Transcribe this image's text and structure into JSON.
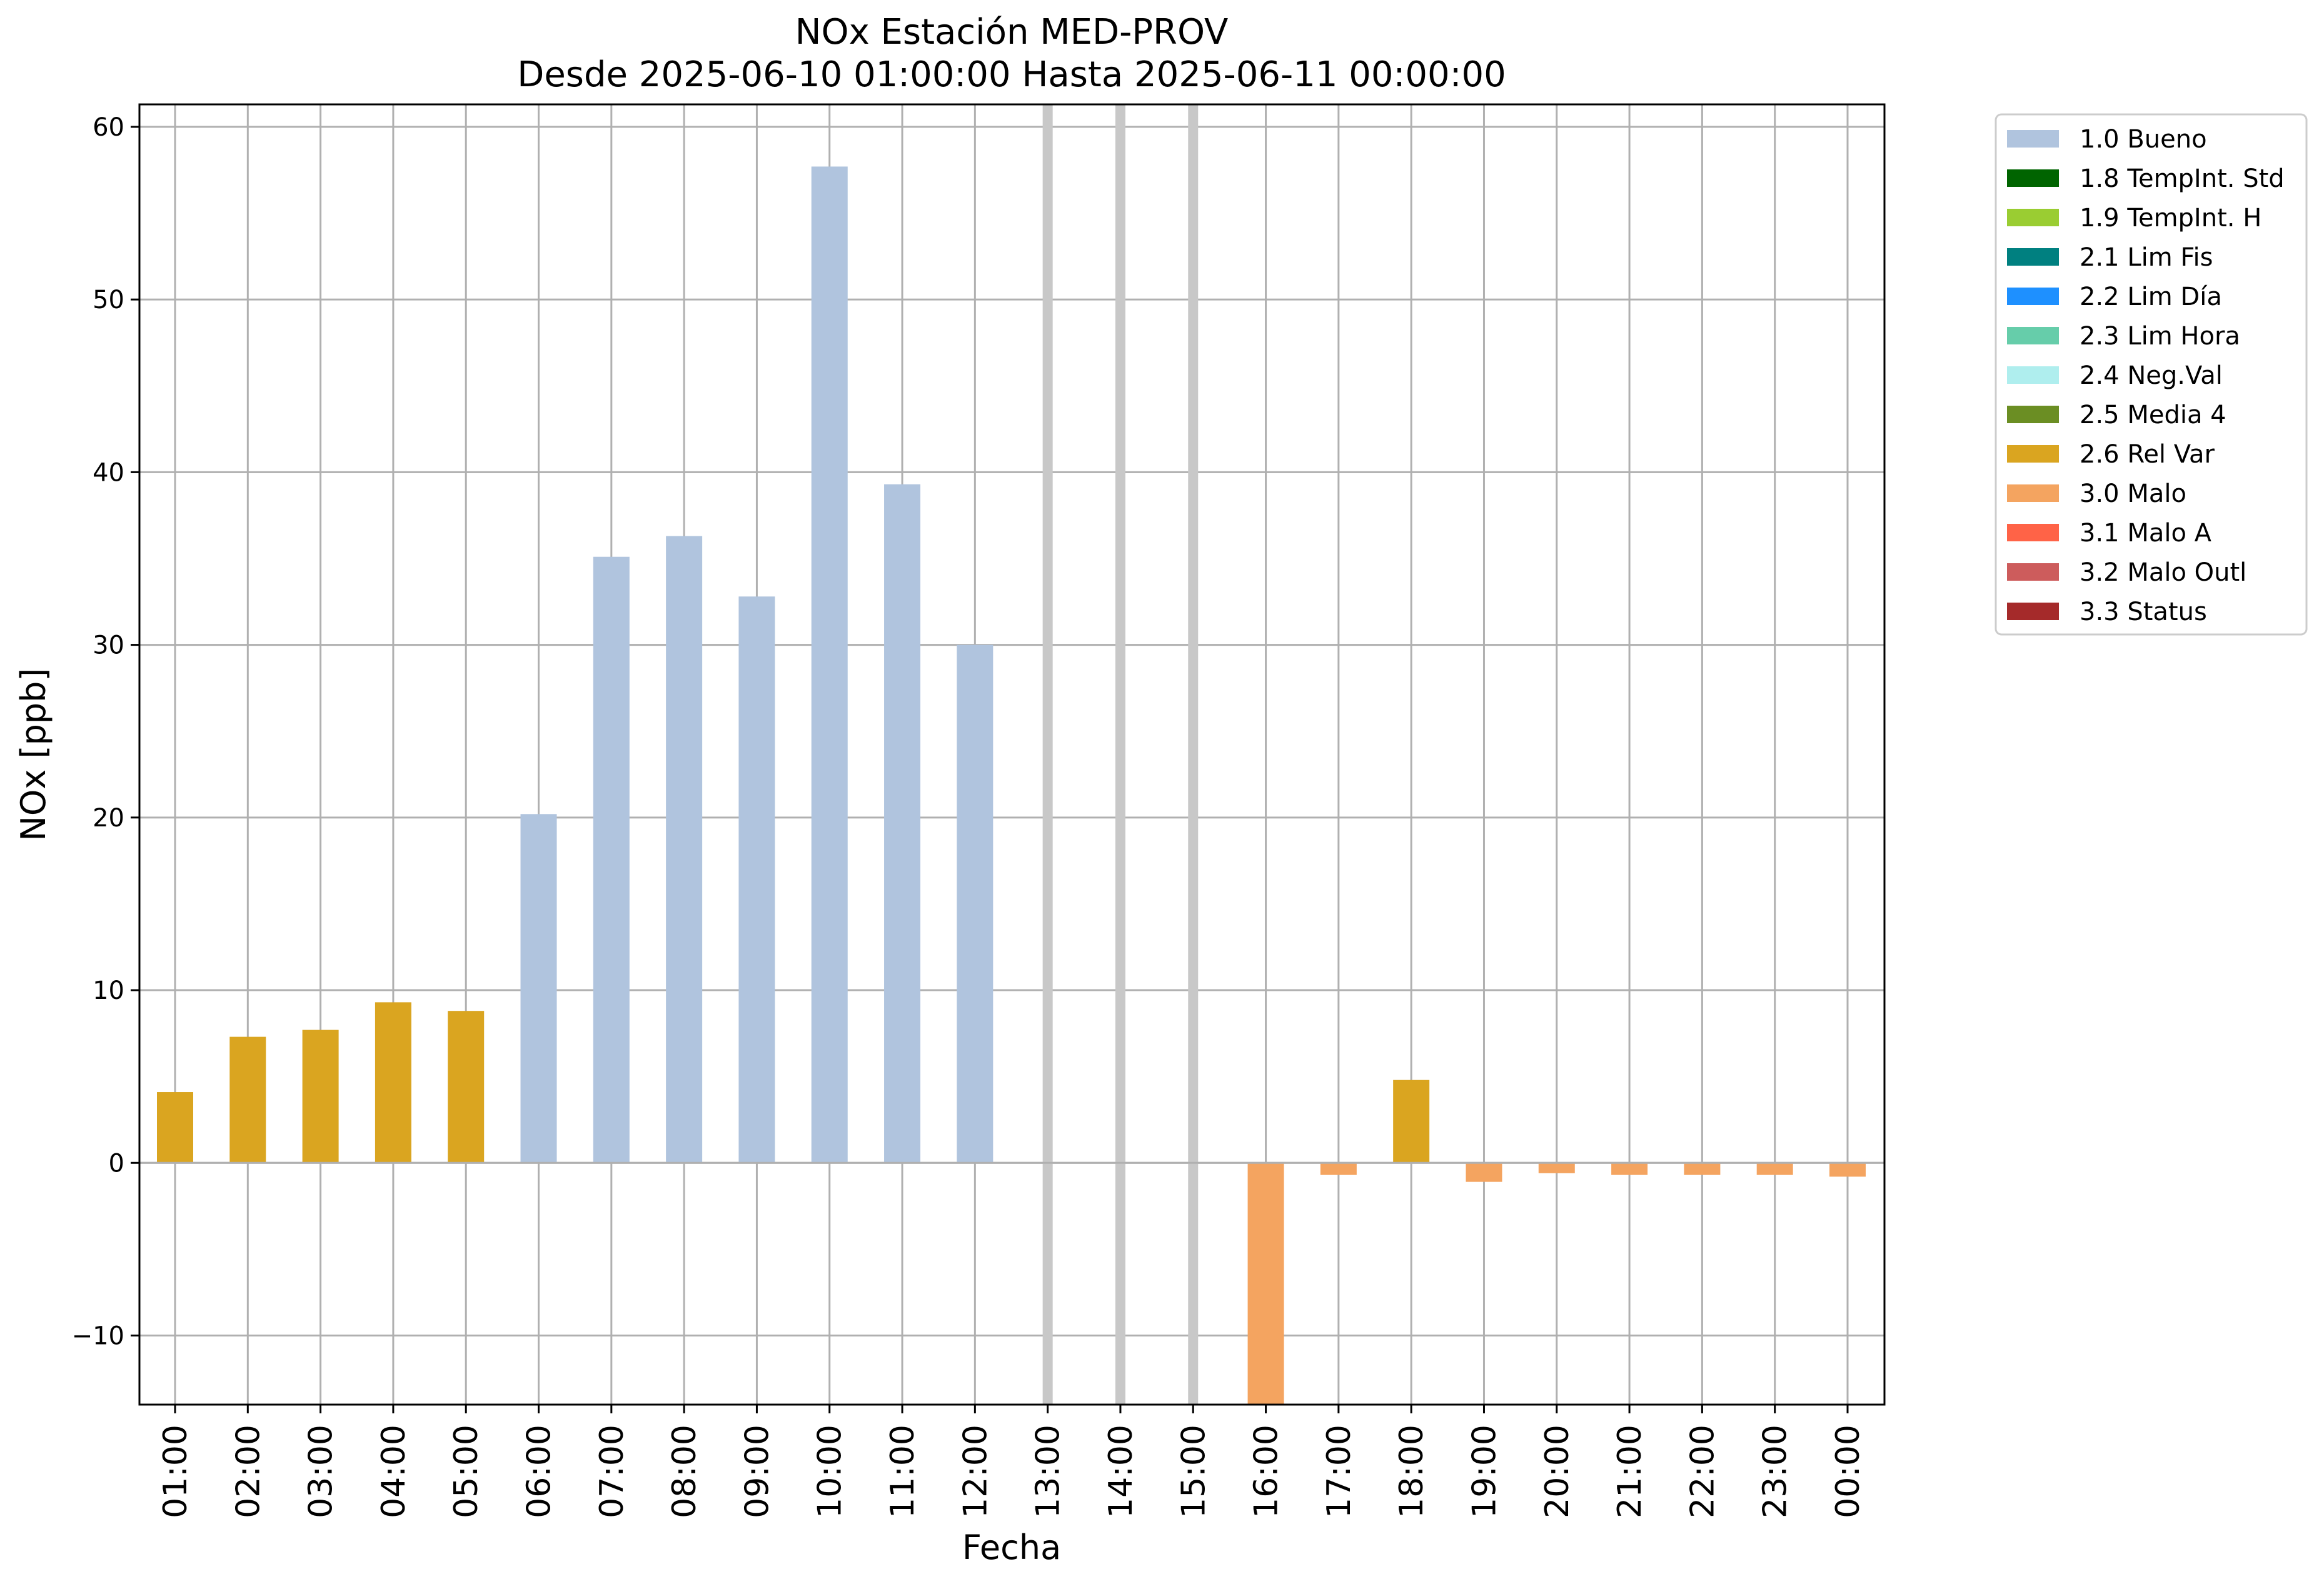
{
  "chart_data": {
    "type": "bar",
    "title_line1": "NOx Estación MED-PROV",
    "title_line2": "Desde 2025-06-10 01:00:00 Hasta 2025-06-11 00:00:00",
    "xlabel": "Fecha",
    "ylabel": "NOx [ppb]",
    "ylim": [
      -14,
      61.3
    ],
    "yticks": [
      -10,
      0,
      10,
      20,
      30,
      40,
      50,
      60
    ],
    "ytick_labels": [
      "−10",
      "0",
      "10",
      "20",
      "30",
      "40",
      "50",
      "60"
    ],
    "grid": true,
    "legend_position": "outside-top-right",
    "categories": [
      "01:00",
      "02:00",
      "03:00",
      "04:00",
      "05:00",
      "06:00",
      "07:00",
      "08:00",
      "09:00",
      "10:00",
      "11:00",
      "12:00",
      "13:00",
      "14:00",
      "15:00",
      "16:00",
      "17:00",
      "18:00",
      "19:00",
      "20:00",
      "21:00",
      "22:00",
      "23:00",
      "00:00"
    ],
    "values": [
      4.1,
      7.3,
      7.7,
      9.3,
      8.8,
      20.2,
      35.1,
      36.3,
      32.8,
      57.7,
      39.3,
      30.0,
      null,
      null,
      null,
      -14,
      -0.7,
      4.8,
      -1.1,
      -0.6,
      -0.7,
      -0.7,
      -0.7,
      -0.8
    ],
    "flags": [
      "2.6 Rel Var",
      "2.6 Rel Var",
      "2.6 Rel Var",
      "2.6 Rel Var",
      "2.6 Rel Var",
      "1.0 Bueno",
      "1.0 Bueno",
      "1.0 Bueno",
      "1.0 Bueno",
      "1.0 Bueno",
      "1.0 Bueno",
      "1.0 Bueno",
      null,
      null,
      null,
      "3.0 Malo",
      "3.0 Malo",
      "2.6 Rel Var",
      "3.0 Malo",
      "3.0 Malo",
      "3.0 Malo",
      "3.0 Malo",
      "3.0 Malo",
      "3.0 Malo"
    ],
    "missing_markers": [
      "13:00",
      "14:00",
      "15:00"
    ],
    "legend": [
      {
        "name": "1.0 Bueno",
        "color": "#b0c4de"
      },
      {
        "name": "1.8 TempInt. Std",
        "color": "#006400"
      },
      {
        "name": "1.9 TempInt. H",
        "color": "#9acd32"
      },
      {
        "name": "2.1 Lim Fis",
        "color": "#008080"
      },
      {
        "name": "2.2 Lim Día",
        "color": "#1e90ff"
      },
      {
        "name": "2.3 Lim Hora",
        "color": "#66cdaa"
      },
      {
        "name": "2.4 Neg.Val",
        "color": "#afeeee"
      },
      {
        "name": "2.5 Media 4",
        "color": "#6b8e23"
      },
      {
        "name": "2.6 Rel Var",
        "color": "#daa520"
      },
      {
        "name": "3.0 Malo",
        "color": "#f4a460"
      },
      {
        "name": "3.1 Malo A",
        "color": "#ff6347"
      },
      {
        "name": "3.2 Malo Outl",
        "color": "#cd5c5c"
      },
      {
        "name": "3.3 Status",
        "color": "#a52a2a"
      }
    ],
    "colors": {
      "grid": "#b0b0b0",
      "missing_marker": "#c8c8c8",
      "axes": "#000000"
    }
  }
}
